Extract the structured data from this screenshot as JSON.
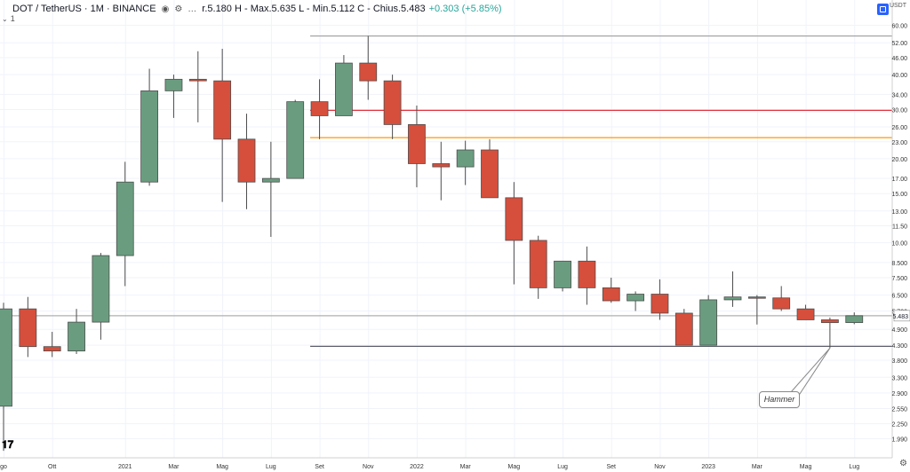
{
  "header": {
    "symbol": "DOT / TetherUS · 1M · BINANCE",
    "ohlc_text": "r.5.180 H - Max.5.635 L - Min.5.112 C - Chius.5.483",
    "change": "+0.303 (+5.85%)",
    "indicator_count": "1"
  },
  "axis": {
    "currency": "USDT"
  },
  "chart_data": {
    "type": "candlestick",
    "title": "",
    "y_scale": "log",
    "ylim": [
      1.75,
      63.0
    ],
    "y_ticks": [
      "60.00",
      "52.00",
      "46.00",
      "40.00",
      "34.00",
      "30.00",
      "26.00",
      "23.00",
      "20.00",
      "17.00",
      "15.00",
      "13.00",
      "11.50",
      "10.00",
      "8.500",
      "7.500",
      "6.500",
      "5.700",
      "4.900",
      "4.300",
      "3.800",
      "3.300",
      "2.900",
      "2.550",
      "2.250",
      "1.990"
    ],
    "y_tick_values": [
      60,
      52,
      46,
      40,
      34,
      30,
      26,
      23,
      20,
      17,
      15,
      13,
      11.5,
      10,
      8.5,
      7.5,
      6.5,
      5.7,
      4.9,
      4.3,
      3.8,
      3.3,
      2.9,
      2.55,
      2.25,
      1.99
    ],
    "x_labels": [
      {
        "i": 0,
        "label": "go"
      },
      {
        "i": 2,
        "label": "Ott"
      },
      {
        "i": 5,
        "label": "2021"
      },
      {
        "i": 7,
        "label": "Mar"
      },
      {
        "i": 9,
        "label": "Mag"
      },
      {
        "i": 11,
        "label": "Lug"
      },
      {
        "i": 13,
        "label": "Set"
      },
      {
        "i": 15,
        "label": "Nov"
      },
      {
        "i": 17,
        "label": "2022"
      },
      {
        "i": 19,
        "label": "Mar"
      },
      {
        "i": 21,
        "label": "Mag"
      },
      {
        "i": 23,
        "label": "Lug"
      },
      {
        "i": 25,
        "label": "Set"
      },
      {
        "i": 27,
        "label": "Nov"
      },
      {
        "i": 29,
        "label": "2023"
      },
      {
        "i": 31,
        "label": "Mar"
      },
      {
        "i": 33,
        "label": "Mag"
      },
      {
        "i": 35,
        "label": "Lug"
      }
    ],
    "candles": [
      {
        "o": 2.6,
        "h": 6.1,
        "l": 1.8,
        "c": 5.8
      },
      {
        "o": 5.8,
        "h": 6.4,
        "l": 3.9,
        "c": 4.25
      },
      {
        "o": 4.25,
        "h": 4.8,
        "l": 3.9,
        "c": 4.1
      },
      {
        "o": 4.1,
        "h": 5.8,
        "l": 4.0,
        "c": 5.2
      },
      {
        "o": 5.2,
        "h": 9.2,
        "l": 4.5,
        "c": 9.0
      },
      {
        "o": 9.0,
        "h": 19.5,
        "l": 7.0,
        "c": 16.5
      },
      {
        "o": 16.5,
        "h": 42.0,
        "l": 16.0,
        "c": 35.0
      },
      {
        "o": 35.0,
        "h": 40.0,
        "l": 28.0,
        "c": 38.5
      },
      {
        "o": 38.5,
        "h": 48.5,
        "l": 27.0,
        "c": 38.0
      },
      {
        "o": 38.0,
        "h": 49.5,
        "l": 14.0,
        "c": 23.5
      },
      {
        "o": 23.5,
        "h": 29.0,
        "l": 13.2,
        "c": 16.5
      },
      {
        "o": 16.5,
        "h": 23.0,
        "l": 10.5,
        "c": 17.0
      },
      {
        "o": 17.0,
        "h": 32.5,
        "l": 17.0,
        "c": 32.0
      },
      {
        "o": 32.0,
        "h": 38.5,
        "l": 23.5,
        "c": 28.5
      },
      {
        "o": 28.5,
        "h": 47.0,
        "l": 28.5,
        "c": 44.0
      },
      {
        "o": 44.0,
        "h": 55.0,
        "l": 32.5,
        "c": 38.0
      },
      {
        "o": 38.0,
        "h": 40.0,
        "l": 23.5,
        "c": 26.5
      },
      {
        "o": 26.5,
        "h": 31.0,
        "l": 15.8,
        "c": 19.2
      },
      {
        "o": 19.2,
        "h": 23.0,
        "l": 14.2,
        "c": 18.7
      },
      {
        "o": 18.7,
        "h": 23.2,
        "l": 16.1,
        "c": 21.5
      },
      {
        "o": 21.5,
        "h": 23.5,
        "l": 14.5,
        "c": 14.5
      },
      {
        "o": 14.5,
        "h": 16.5,
        "l": 7.1,
        "c": 10.2
      },
      {
        "o": 10.2,
        "h": 10.6,
        "l": 6.3,
        "c": 6.9
      },
      {
        "o": 6.9,
        "h": 8.6,
        "l": 6.7,
        "c": 8.6
      },
      {
        "o": 8.6,
        "h": 9.7,
        "l": 6.0,
        "c": 6.9
      },
      {
        "o": 6.9,
        "h": 7.5,
        "l": 6.1,
        "c": 6.2
      },
      {
        "o": 6.2,
        "h": 6.7,
        "l": 5.7,
        "c": 6.55
      },
      {
        "o": 6.55,
        "h": 7.4,
        "l": 5.3,
        "c": 5.6
      },
      {
        "o": 5.6,
        "h": 5.8,
        "l": 4.3,
        "c": 4.3
      },
      {
        "o": 4.3,
        "h": 6.5,
        "l": 4.3,
        "c": 6.25
      },
      {
        "o": 6.25,
        "h": 7.9,
        "l": 5.9,
        "c": 6.4
      },
      {
        "o": 6.4,
        "h": 6.5,
        "l": 5.1,
        "c": 6.35
      },
      {
        "o": 6.35,
        "h": 7.0,
        "l": 5.7,
        "c": 5.8
      },
      {
        "o": 5.8,
        "h": 6.0,
        "l": 5.3,
        "c": 5.3
      },
      {
        "o": 5.3,
        "h": 5.4,
        "l": 4.2,
        "c": 5.18
      },
      {
        "o": 5.18,
        "h": 5.635,
        "l": 5.112,
        "c": 5.483
      }
    ],
    "hlines": [
      {
        "value": 55.0,
        "color": "#9e9e9e",
        "from_i": 13
      },
      {
        "value": 29.8,
        "color": "#e0343f",
        "from_i": 13
      },
      {
        "value": 23.8,
        "color": "#ff9800",
        "from_i": 13
      },
      {
        "value": 4.26,
        "color": "#5d606b",
        "from_i": 13
      },
      {
        "value": 5.483,
        "color": "#b0b0b0",
        "from_i": 0
      }
    ],
    "last_price": "5.483",
    "annotation": {
      "text": "Hammer",
      "target_i": 34,
      "target_value": 4.2
    },
    "colors": {
      "up": "#6a9d80",
      "down": "#d64f3c",
      "outline": "#4d4d4d"
    }
  }
}
